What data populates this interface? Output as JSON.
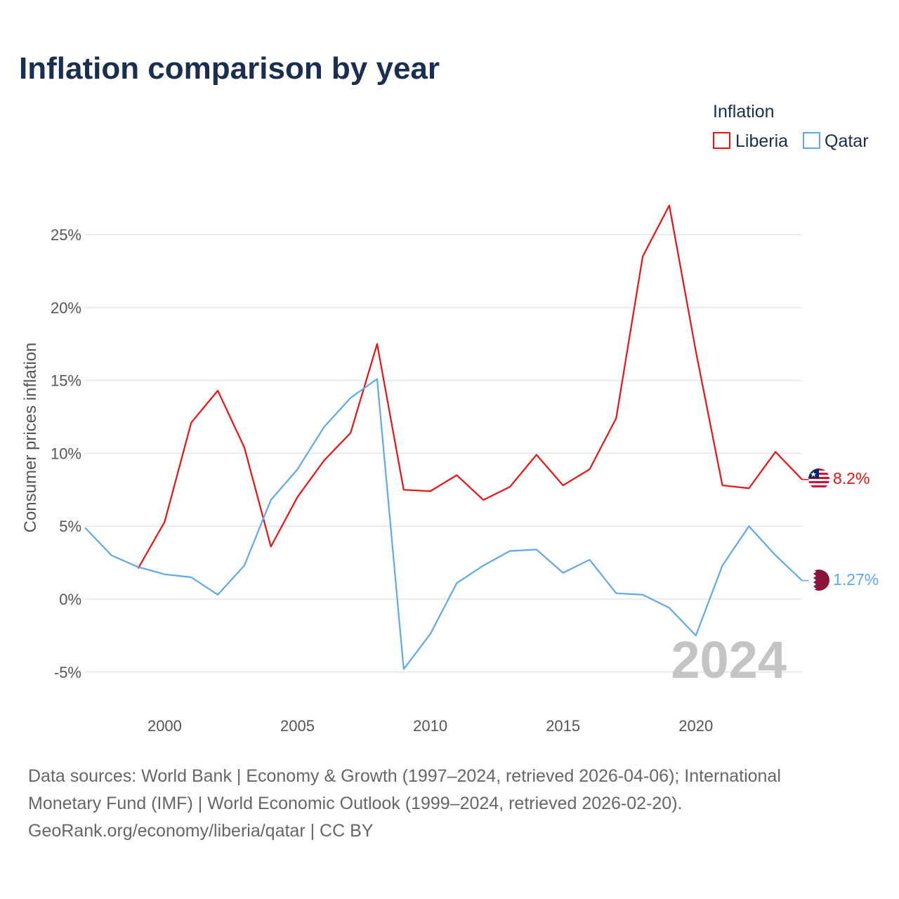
{
  "chart_data": {
    "type": "line",
    "title": "Inflation comparison by year",
    "xlabel": "",
    "ylabel": "Consumer prices inflation",
    "ylim": [
      -6,
      28
    ],
    "xlim": [
      1997,
      2024
    ],
    "grid": true,
    "y_ticks": [
      "-5%",
      "0%",
      "5%",
      "10%",
      "15%",
      "20%",
      "25%"
    ],
    "y_tick_values": [
      -5,
      0,
      5,
      10,
      15,
      20,
      25
    ],
    "x_ticks": [
      "2000",
      "2005",
      "2010",
      "2015",
      "2020"
    ],
    "x_tick_values": [
      2000,
      2005,
      2010,
      2015,
      2020
    ],
    "legend_title": "Inflation",
    "legend_placement": "top-right",
    "year_label": "2024",
    "series": [
      {
        "name": "Liberia",
        "color": "#ee1111",
        "end_label": "8.2%",
        "flag": "liberia-flag",
        "x": [
          1999,
          2000,
          2001,
          2002,
          2003,
          2004,
          2005,
          2006,
          2007,
          2008,
          2009,
          2010,
          2011,
          2012,
          2013,
          2014,
          2015,
          2016,
          2017,
          2018,
          2019,
          2020,
          2021,
          2022,
          2023,
          2024
        ],
        "values": [
          2.1,
          5.3,
          12.1,
          14.3,
          10.4,
          3.6,
          7.0,
          9.5,
          11.4,
          17.5,
          7.5,
          7.4,
          8.5,
          6.8,
          7.7,
          9.9,
          7.8,
          8.9,
          12.4,
          23.5,
          27.0,
          17.0,
          7.8,
          7.6,
          10.1,
          8.2
        ]
      },
      {
        "name": "Qatar",
        "color": "#5fa8ec",
        "end_label": "1.27%",
        "flag": "qatar-flag",
        "x": [
          1997,
          1998,
          1999,
          2000,
          2001,
          2002,
          2003,
          2004,
          2005,
          2006,
          2007,
          2008,
          2009,
          2010,
          2011,
          2012,
          2013,
          2014,
          2015,
          2016,
          2017,
          2018,
          2019,
          2020,
          2021,
          2022,
          2023,
          2024
        ],
        "values": [
          4.9,
          3.0,
          2.2,
          1.7,
          1.5,
          0.3,
          2.3,
          6.8,
          8.9,
          11.8,
          13.8,
          15.1,
          -4.8,
          -2.4,
          1.1,
          2.3,
          3.3,
          3.4,
          1.8,
          2.7,
          0.4,
          0.3,
          -0.6,
          -2.5,
          2.3,
          5.0,
          3.0,
          1.27
        ]
      }
    ]
  },
  "footer": {
    "line1": "Data sources: World Bank | Economy & Growth (1997–2024, retrieved 2026-04-06); International",
    "line2": "Monetary Fund (IMF) | World Economic Outlook (1999–2024, retrieved 2026-02-20).",
    "line3": "GeoRank.org/economy/liberia/qatar | CC BY"
  }
}
